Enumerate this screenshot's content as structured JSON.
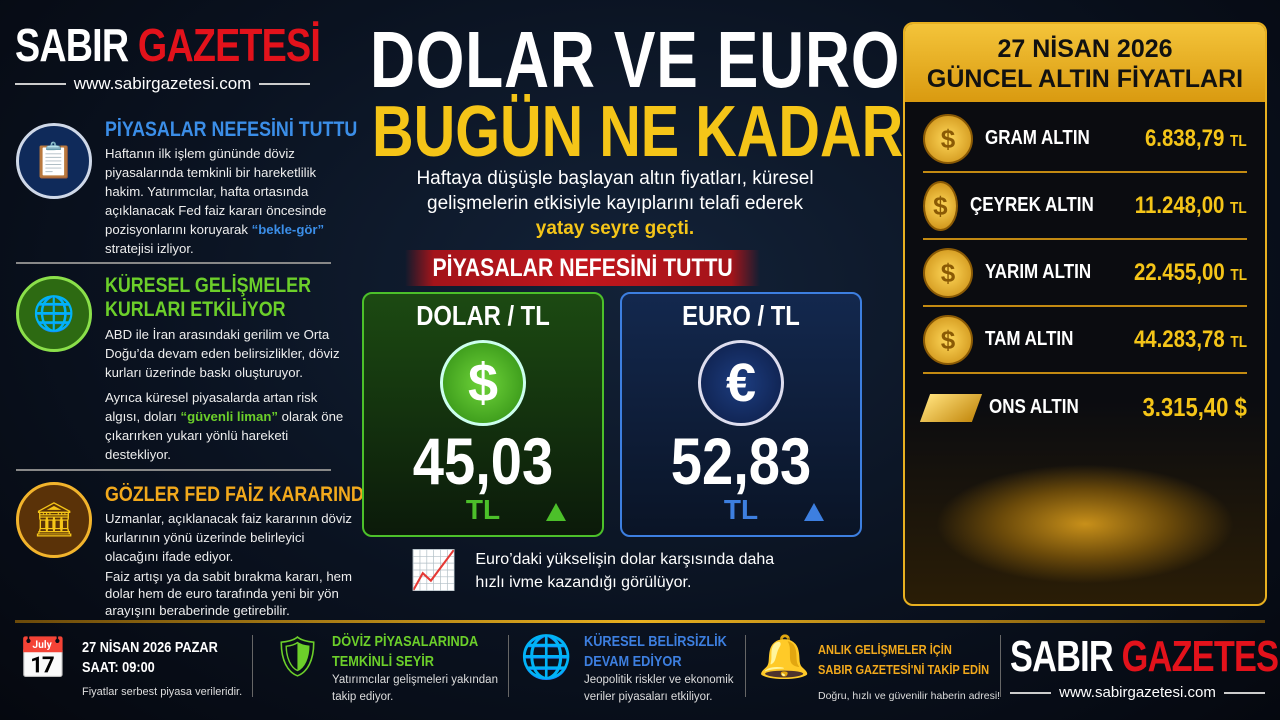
{
  "brand": {
    "name_part1": "SABIR",
    "name_part2": "GAZETESİ",
    "url": "www.sabirgazetesi.com",
    "color_red": "#e3121b"
  },
  "headline": {
    "line1": "DOLAR VE EURO",
    "line2": "BUGÜN NE KADAR?"
  },
  "subtitle": {
    "text": "Haftaya düşüşle başlayan altın fiyatları, küresel gelişmelerin etkisiyle kayıplarını telafi ederek",
    "highlight": "yatay seyre geçti."
  },
  "banner": "PİYASALAR NEFESİNİ TUTTU",
  "sections": [
    {
      "icon": "clipboard-chart-icon",
      "title": "PİYASALAR NEFESİNİ TUTTU",
      "color": "#3b8ee8",
      "text": "Haftanın ilk işlem gününde döviz piyasalarında temkinli bir hareketlilik hakim. Yatırımcılar, hafta ortasında açıklanacak Fed faiz kararı öncesinde pozisyonlarını koruyarak",
      "highlight": "“bekle-gör”",
      "text_after": "stratejisi izliyor."
    },
    {
      "icon": "globe-icon",
      "title_line1": "KÜRESEL GELİŞMELER",
      "title_line2": "KURLARI ETKİLİYOR",
      "color": "#6ccf2a",
      "text": "ABD ile İran arasındaki gerilim ve Orta Doğu’da devam eden belirsizlikler, döviz kurları üzerinde baskı oluşturuyor.",
      "text2": "Ayrıca küresel piyasalarda artan risk algısı, doları",
      "highlight": "“güvenli liman”",
      "text2_after": "olarak öne çıkarırken yukarı yönlü hareketi destekliyor."
    },
    {
      "icon": "bank-icon",
      "title": "GÖZLER FED FAİZ KARARINDA",
      "color": "#f2a91c",
      "text": "Uzmanlar, açıklanacak faiz kararının döviz kurlarının yönü üzerinde belirleyici olacağını ifade ediyor.",
      "text2": "Faiz artışı ya da sabit bırakma kararı, hem dolar hem de euro tarafında yeni bir yön arayışını beraberinde getirebilir."
    }
  ],
  "rates": [
    {
      "label": "DOLAR / TL",
      "symbol": "$",
      "value": "45,03",
      "currency": "TL",
      "trend": "up",
      "color": "#4cc02a"
    },
    {
      "label": "EURO / TL",
      "symbol": "€",
      "value": "52,83",
      "currency": "TL",
      "trend": "up",
      "color": "#3d7fe0"
    }
  ],
  "note": "Euro’daki yükselişin dolar karşısında daha hızlı ivme kazandığı görülüyor.",
  "gold": {
    "date": "27 NİSAN 2026",
    "title": "GÜNCEL ALTIN FİYATLARI",
    "items": [
      {
        "name": "GRAM ALTIN",
        "value": "6.838,79",
        "unit": "TL"
      },
      {
        "name": "ÇEYREK ALTIN",
        "value": "11.248,00",
        "unit": "TL"
      },
      {
        "name": "YARIM ALTIN",
        "value": "22.455,00",
        "unit": "TL"
      },
      {
        "name": "TAM ALTIN",
        "value": "44.283,78",
        "unit": "TL"
      },
      {
        "name": "ONS ALTIN",
        "value": "3.315,40",
        "unit": "$"
      }
    ]
  },
  "footer": {
    "date": "27 NİSAN 2026 PAZAR",
    "time": "SAAT: 09:00",
    "disclaimer": "Fiyatlar serbest piyasa verileridir.",
    "f1_title1": "DÖVİZ PİYASALARINDA",
    "f1_title2": "TEMKİNLİ SEYİR",
    "f1_text": "Yatırımcılar gelişmeleri yakından takip ediyor.",
    "f2_title1": "KÜRESEL BELİRSİZLİK",
    "f2_title2": "DEVAM EDİYOR",
    "f2_text": "Jeopolitik riskler ve ekonomik veriler piyasaları etkiliyor.",
    "f3_title1": "ANLIK GELİŞMELER İÇİN",
    "f3_title2": "SABIR GAZETESİ'Nİ TAKİP EDİN",
    "f3_text": "Doğru, hızlı ve güvenilir haberin adresi!"
  }
}
